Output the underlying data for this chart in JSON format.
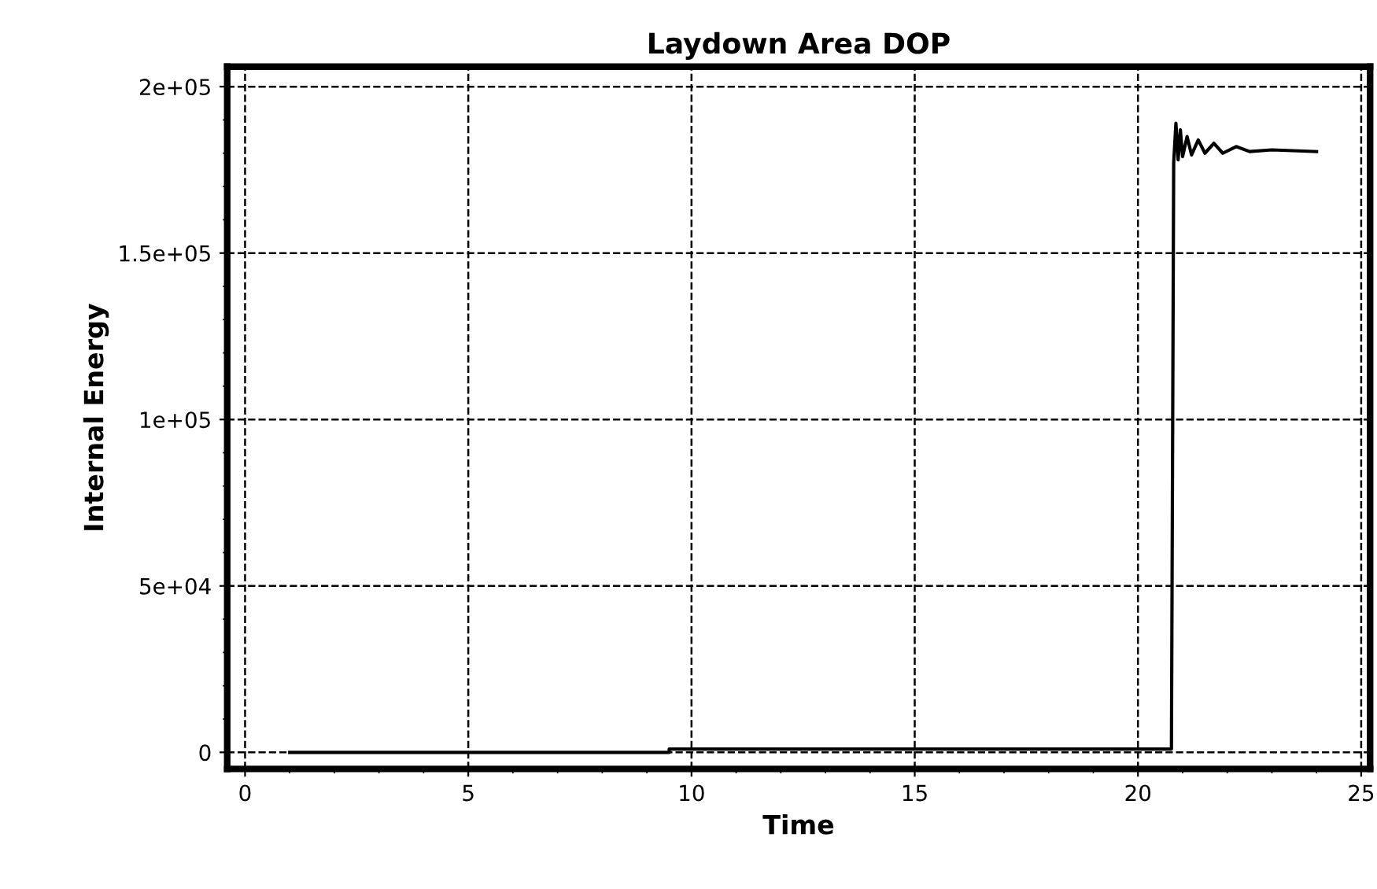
{
  "chart_data": {
    "type": "line",
    "title": "Laydown Area DOP",
    "xlabel": "Time",
    "ylabel": "Internal Energy",
    "xlim": [
      -0.4,
      25.2
    ],
    "ylim": [
      -5000,
      206000
    ],
    "xticks": [
      0,
      5,
      10,
      15,
      20,
      25
    ],
    "yticks": [
      {
        "value": 0,
        "label": "0"
      },
      {
        "value": 50000,
        "label": "5e+04"
      },
      {
        "value": 100000,
        "label": "1e+05"
      },
      {
        "value": 150000,
        "label": "1.5e+05"
      },
      {
        "value": 200000,
        "label": "2e+05"
      }
    ],
    "grid": true,
    "legend": false,
    "marker": "none",
    "line_style": "solid",
    "series": [
      {
        "color": "#000000",
        "x": [
          1,
          9.5,
          9.5,
          20.75,
          20.8,
          20.85,
          20.9,
          20.95,
          21.0,
          21.1,
          21.2,
          21.35,
          21.5,
          21.7,
          21.9,
          22.2,
          22.5,
          23,
          24
        ],
        "values": [
          0,
          0,
          1000,
          1000,
          177000,
          189000,
          178000,
          187000,
          179000,
          185000,
          179500,
          184000,
          180000,
          183000,
          180000,
          182000,
          180500,
          181000,
          180500
        ]
      }
    ]
  }
}
